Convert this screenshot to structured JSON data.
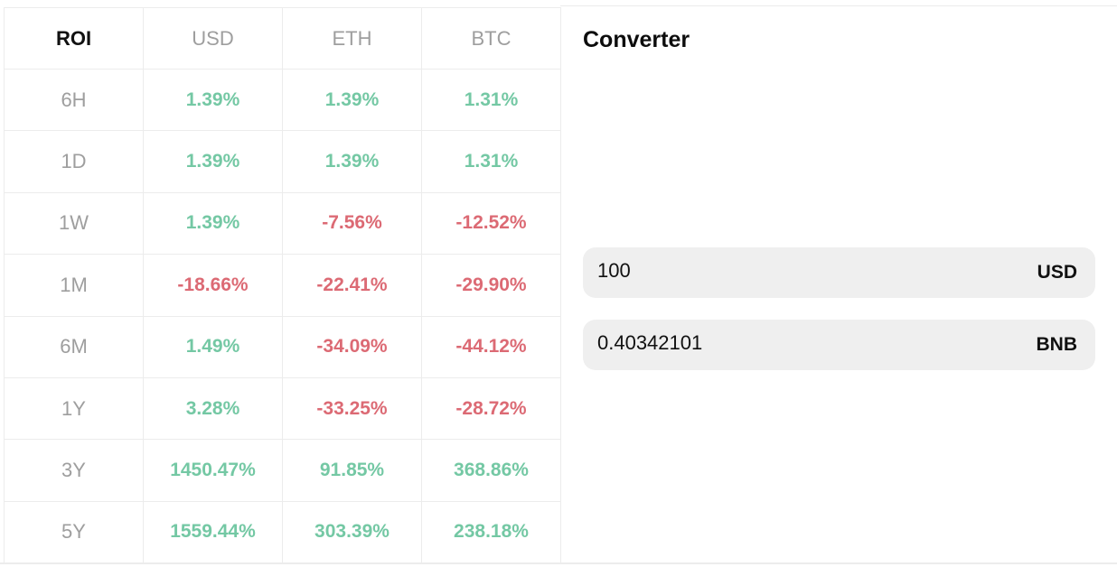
{
  "roi_table": {
    "headers": [
      "ROI",
      "USD",
      "ETH",
      "BTC"
    ],
    "rows": [
      {
        "period": "6H",
        "usd": "1.39%",
        "eth": "1.39%",
        "btc": "1.31%",
        "usd_sign": "pos",
        "eth_sign": "pos",
        "btc_sign": "pos"
      },
      {
        "period": "1D",
        "usd": "1.39%",
        "eth": "1.39%",
        "btc": "1.31%",
        "usd_sign": "pos",
        "eth_sign": "pos",
        "btc_sign": "pos"
      },
      {
        "period": "1W",
        "usd": "1.39%",
        "eth": "-7.56%",
        "btc": "-12.52%",
        "usd_sign": "pos",
        "eth_sign": "neg",
        "btc_sign": "neg"
      },
      {
        "period": "1M",
        "usd": "-18.66%",
        "eth": "-22.41%",
        "btc": "-29.90%",
        "usd_sign": "neg",
        "eth_sign": "neg",
        "btc_sign": "neg"
      },
      {
        "period": "6M",
        "usd": "1.49%",
        "eth": "-34.09%",
        "btc": "-44.12%",
        "usd_sign": "pos",
        "eth_sign": "neg",
        "btc_sign": "neg"
      },
      {
        "period": "1Y",
        "usd": "3.28%",
        "eth": "-33.25%",
        "btc": "-28.72%",
        "usd_sign": "pos",
        "eth_sign": "neg",
        "btc_sign": "neg"
      },
      {
        "period": "3Y",
        "usd": "1450.47%",
        "eth": "91.85%",
        "btc": "368.86%",
        "usd_sign": "pos",
        "eth_sign": "pos",
        "btc_sign": "pos"
      },
      {
        "period": "5Y",
        "usd": "1559.44%",
        "eth": "303.39%",
        "btc": "238.18%",
        "usd_sign": "pos",
        "eth_sign": "pos",
        "btc_sign": "pos"
      }
    ]
  },
  "converter": {
    "title": "Converter",
    "fields": [
      {
        "value": "100",
        "unit": "USD"
      },
      {
        "value": "0.40342101",
        "unit": "BNB"
      }
    ]
  },
  "colors": {
    "positive": "#74c8a4",
    "negative": "#dc6a74",
    "muted": "#9e9e9e",
    "field_bg": "#efefef"
  }
}
